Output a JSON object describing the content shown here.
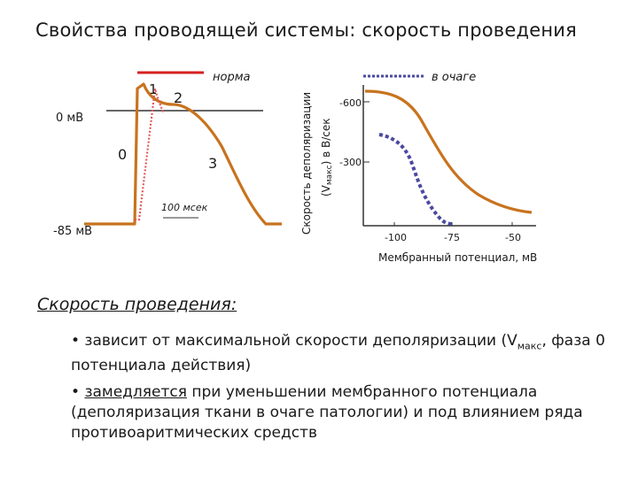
{
  "title": "Свойства проводящей системы: скорость проведения",
  "ap_panel": {
    "legend_normal": "норма",
    "label_0mv": "0 мВ",
    "label_85mv": "-85 мВ",
    "phase_0": "0",
    "phase_1": "1",
    "phase_2": "2",
    "phase_3": "3",
    "time_scale": "100 мсек"
  },
  "velocity_panel": {
    "legend_focus": "в очаге",
    "ylabel_line1": "Скорость деполяризации",
    "ylabel_line2_a": "(V",
    "ylabel_line2_sub": "макс",
    "ylabel_line2_b": ") в В/сек",
    "xlabel": "Мембранный потенциал, мВ",
    "ytick_600": "-600",
    "ytick_300": "-300",
    "xtick_100": "-100",
    "xtick_75": "-75",
    "xtick_50": "-50"
  },
  "colors": {
    "curve": "#c8731e",
    "normal": "#d42020",
    "focus": "#4a4aa0",
    "axis": "#333333"
  },
  "section_title": "Скорость проведения:",
  "bullets": {
    "b1_prefix": "• зависит  от максимальной скорости деполяризации (V",
    "b1_sub": "макс",
    "b1_suffix": ", фаза 0 потенциала действия)",
    "b2_prefix": "• ",
    "b2_underlined": "замедляется",
    "b2_suffix": " при уменьшении мембранного потенциала (деполяризация ткани в очаге патологии) и под влиянием ряда противоаритмических средств"
  }
}
